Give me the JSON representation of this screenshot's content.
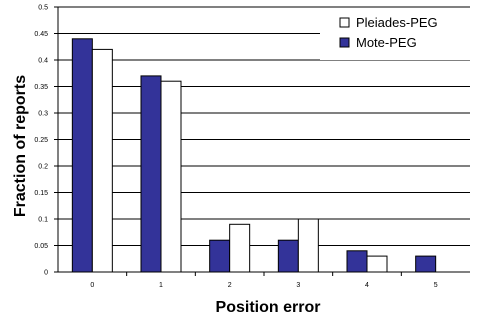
{
  "chart_data": {
    "type": "bar",
    "xlabel": "Position error",
    "ylabel": "Fraction of reports",
    "categories": [
      "0",
      "1",
      "2",
      "3",
      "4",
      "5"
    ],
    "ylim": [
      0,
      0.5
    ],
    "yticks": [
      "0",
      "0.05",
      "0.1",
      "0.15",
      "0.2",
      "0.25",
      "0.3",
      "0.35",
      "0.4",
      "0.45",
      "0.5"
    ],
    "grid": true,
    "legend_position": "top-right",
    "series": [
      {
        "name": "Mote-PEG",
        "color": "#333399",
        "values": [
          0.44,
          0.37,
          0.06,
          0.06,
          0.04,
          0.03
        ]
      },
      {
        "name": "Pleiades-PEG",
        "color": "#ffffff",
        "values": [
          0.42,
          0.36,
          0.09,
          0.1,
          0.03,
          0.0
        ]
      }
    ],
    "legend_order": [
      1,
      0
    ]
  }
}
